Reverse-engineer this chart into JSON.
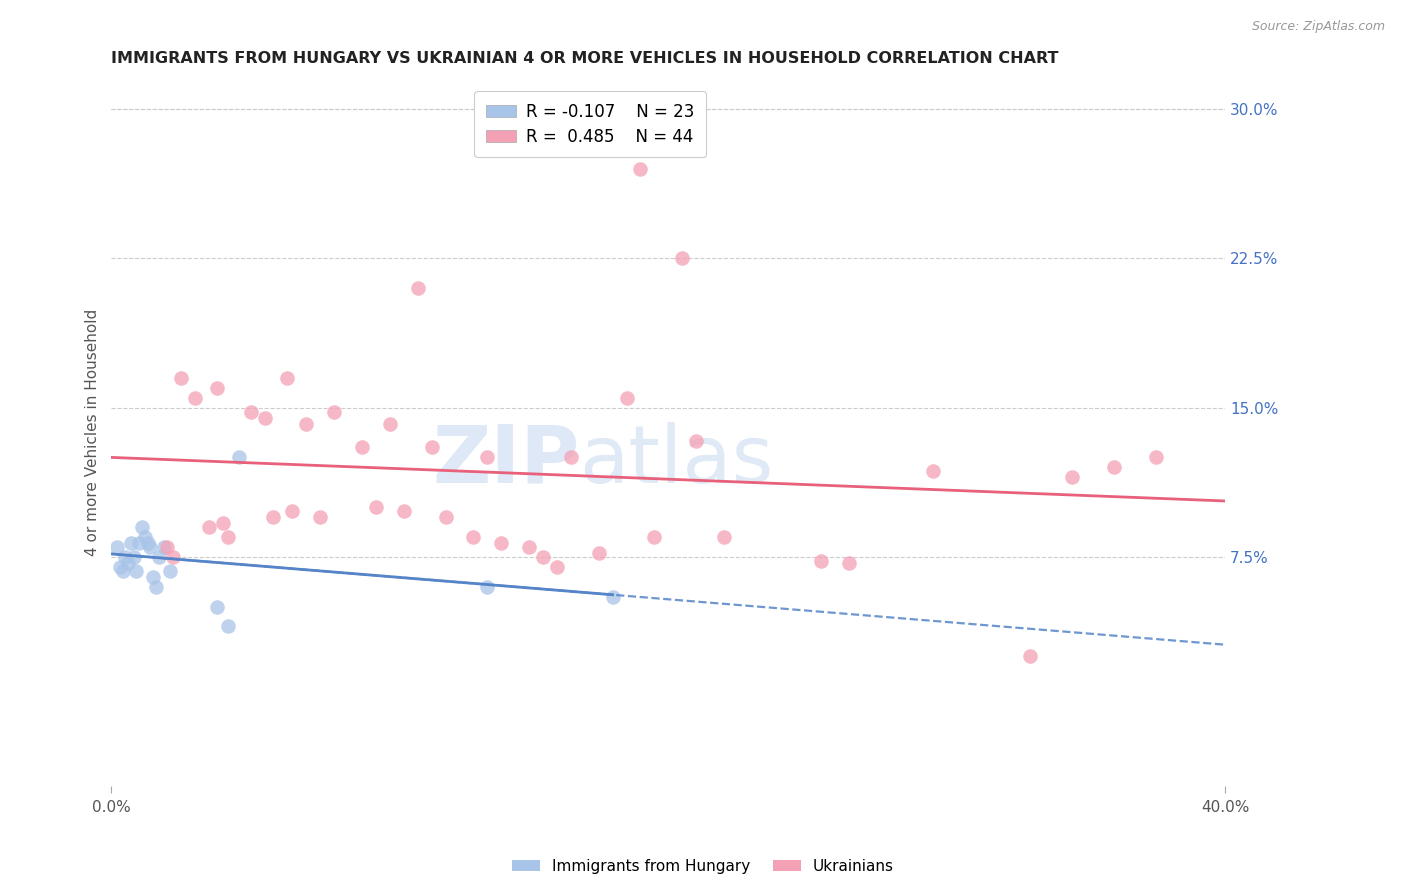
{
  "title": "IMMIGRANTS FROM HUNGARY VS UKRAINIAN 4 OR MORE VEHICLES IN HOUSEHOLD CORRELATION CHART",
  "source": "Source: ZipAtlas.com",
  "ylabel": "4 or more Vehicles in Household",
  "xlim": [
    0.0,
    0.4
  ],
  "ylim": [
    -0.04,
    0.315
  ],
  "yticks_right": [
    0.075,
    0.15,
    0.225,
    0.3
  ],
  "ytick_labels_right": [
    "7.5%",
    "15.0%",
    "22.5%",
    "30.0%"
  ],
  "legend_r_hungary": "-0.107",
  "legend_n_hungary": "23",
  "legend_r_ukrainian": "0.485",
  "legend_n_ukrainian": "44",
  "hungary_color": "#a8c4e8",
  "ukrainian_color": "#f4a0b5",
  "hungary_line_color": "#5585c8",
  "ukrainian_line_color": "#e8607a",
  "watermark_zip": "ZIP",
  "watermark_atlas": "atlas",
  "watermark_color_zip": "#d0dff5",
  "watermark_color_atlas": "#c8d8f0",
  "hungary_x": [
    0.002,
    0.003,
    0.004,
    0.005,
    0.006,
    0.007,
    0.008,
    0.009,
    0.01,
    0.011,
    0.012,
    0.013,
    0.014,
    0.015,
    0.016,
    0.017,
    0.019,
    0.021,
    0.038,
    0.042,
    0.046,
    0.135,
    0.18
  ],
  "hungary_y": [
    0.08,
    0.07,
    0.068,
    0.075,
    0.072,
    0.082,
    0.075,
    0.068,
    0.082,
    0.09,
    0.085,
    0.082,
    0.08,
    0.065,
    0.06,
    0.075,
    0.08,
    0.068,
    0.05,
    0.04,
    0.125,
    0.06,
    0.055
  ],
  "ukrainian_x": [
    0.02,
    0.022,
    0.025,
    0.03,
    0.035,
    0.038,
    0.04,
    0.042,
    0.05,
    0.055,
    0.058,
    0.063,
    0.065,
    0.07,
    0.075,
    0.08,
    0.09,
    0.095,
    0.1,
    0.105,
    0.11,
    0.115,
    0.12,
    0.13,
    0.135,
    0.14,
    0.15,
    0.155,
    0.16,
    0.165,
    0.175,
    0.185,
    0.19,
    0.195,
    0.205,
    0.21,
    0.22,
    0.255,
    0.265,
    0.295,
    0.33,
    0.345,
    0.36,
    0.375
  ],
  "ukrainian_y": [
    0.08,
    0.075,
    0.165,
    0.155,
    0.09,
    0.16,
    0.092,
    0.085,
    0.148,
    0.145,
    0.095,
    0.165,
    0.098,
    0.142,
    0.095,
    0.148,
    0.13,
    0.1,
    0.142,
    0.098,
    0.21,
    0.13,
    0.095,
    0.085,
    0.125,
    0.082,
    0.08,
    0.075,
    0.07,
    0.125,
    0.077,
    0.155,
    0.27,
    0.085,
    0.225,
    0.133,
    0.085,
    0.073,
    0.072,
    0.118,
    0.025,
    0.115,
    0.12,
    0.125
  ]
}
